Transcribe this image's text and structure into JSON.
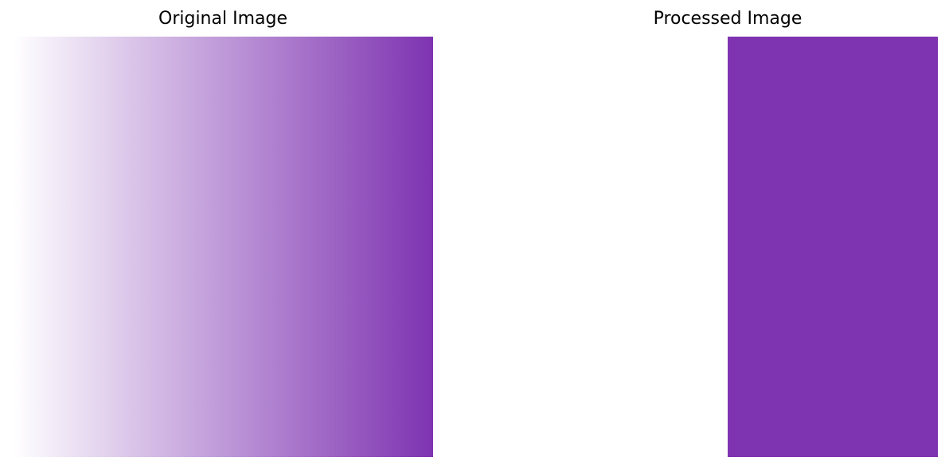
{
  "panels": {
    "original": {
      "title": "Original Image",
      "gradient": {
        "start_color": "#ffffff",
        "end_color": "#7e33b1",
        "direction": "left-to-right"
      }
    },
    "processed": {
      "title": "Processed Image",
      "fill_color": "#7e33b1",
      "fill_start_fraction": 0.5
    }
  }
}
